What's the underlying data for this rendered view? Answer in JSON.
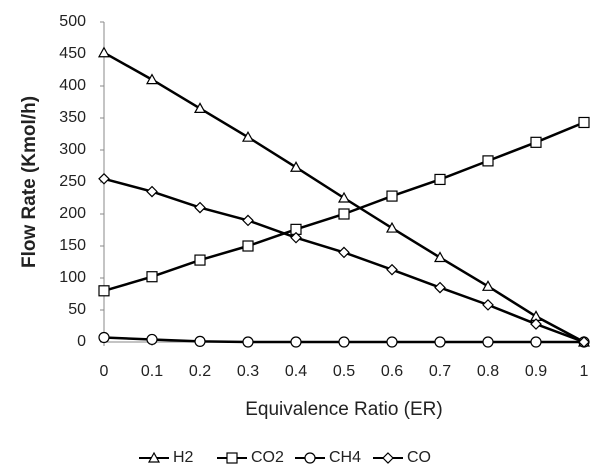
{
  "chart_data": {
    "type": "line",
    "x_label": "Equivalence Ratio (ER)",
    "y_label": "Flow Rate (Kmol/h)",
    "x": [
      0,
      0.1,
      0.2,
      0.3,
      0.4,
      0.5,
      0.6,
      0.7,
      0.8,
      0.9,
      1
    ],
    "series": [
      {
        "name": "H2",
        "color": "#000000",
        "marker": "triangle",
        "values": [
          452,
          410,
          365,
          320,
          273,
          225,
          178,
          132,
          87,
          40,
          0
        ]
      },
      {
        "name": "CO2",
        "color": "#000000",
        "marker": "square",
        "values": [
          80,
          102,
          128,
          150,
          176,
          200,
          228,
          254,
          283,
          312,
          343
        ]
      },
      {
        "name": "CH4",
        "color": "#000000",
        "marker": "circle",
        "values": [
          7,
          4,
          1,
          0,
          0,
          0,
          0,
          0,
          0,
          0,
          0
        ]
      },
      {
        "name": "CO",
        "color": "#000000",
        "marker": "diamond",
        "values": [
          255,
          235,
          210,
          190,
          163,
          140,
          113,
          85,
          58,
          28,
          0
        ]
      }
    ],
    "xlim": [
      0,
      1
    ],
    "xticks": [
      0,
      0.1,
      0.2,
      0.3,
      0.4,
      0.5,
      0.6,
      0.7,
      0.8,
      0.9,
      1
    ],
    "ylim": [
      0,
      500
    ],
    "yticks": [
      0,
      50,
      100,
      150,
      200,
      250,
      300,
      350,
      400,
      450,
      500
    ],
    "grid": false,
    "legend": "bottom"
  }
}
